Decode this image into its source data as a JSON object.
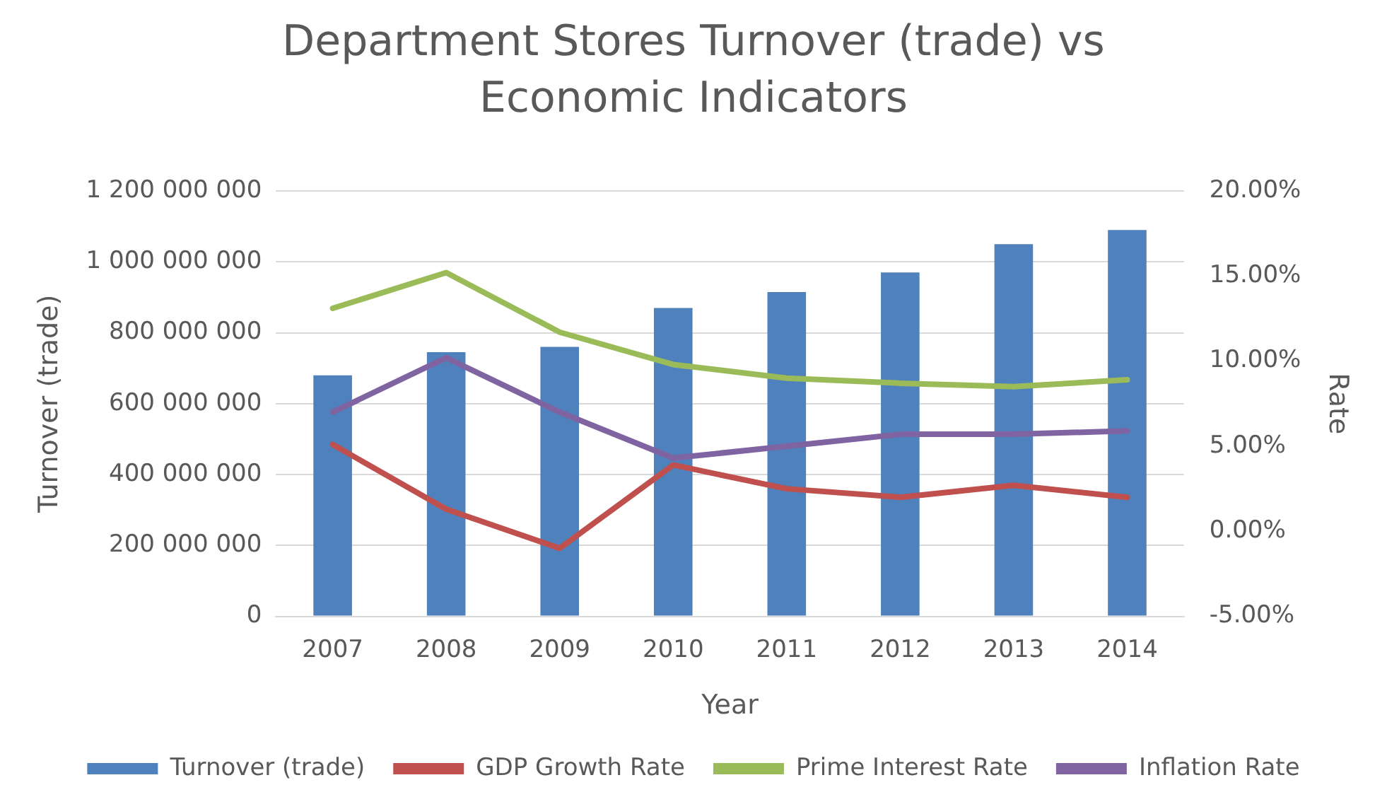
{
  "chart_data": {
    "type": "bar",
    "title": "Department Stores Turnover (trade) vs Economic Indicators",
    "xlabel": "Year",
    "ylabel": "Turnover (trade)",
    "y2label": "Rate",
    "categories": [
      "2007",
      "2008",
      "2009",
      "2010",
      "2011",
      "2012",
      "2013",
      "2014"
    ],
    "series": [
      {
        "name": "Turnover (trade)",
        "color": "#4f81bd",
        "values": [
          680000000,
          745000000,
          760000000,
          870000000,
          915000000,
          970000000,
          1050000000,
          1090000000
        ]
      },
      {
        "name": "GDP Growth Rate",
        "type": "line",
        "axis": "y2",
        "color": "#c0504d",
        "values": [
          5.1,
          1.3,
          -1.0,
          3.9,
          2.5,
          2.0,
          2.7,
          2.0
        ]
      },
      {
        "name": "Prime Interest Rate",
        "type": "line",
        "axis": "y2",
        "color": "#9bbb59",
        "values": [
          13.1,
          15.2,
          11.7,
          9.8,
          9.0,
          8.7,
          8.5,
          8.9
        ]
      },
      {
        "name": "Inflation Rate",
        "type": "line",
        "axis": "y2",
        "color": "#8064a2",
        "values": [
          7.0,
          10.2,
          7.0,
          4.3,
          5.0,
          5.7,
          5.7,
          5.9
        ]
      }
    ],
    "ylim": [
      0,
      1200000000
    ],
    "yticks": [
      {
        "value": 0,
        "label": "0"
      },
      {
        "value": 200000000,
        "label": "200 000 000"
      },
      {
        "value": 400000000,
        "label": "400 000 000"
      },
      {
        "value": 600000000,
        "label": "600 000 000"
      },
      {
        "value": 800000000,
        "label": "800 000 000"
      },
      {
        "value": 1000000000,
        "label": "1 000 000 000"
      },
      {
        "value": 1200000000,
        "label": "1 200 000 000"
      }
    ],
    "y2lim": [
      -5,
      20
    ],
    "y2ticks": [
      {
        "value": -5,
        "label": "-5.00%"
      },
      {
        "value": 0,
        "label": "0.00%"
      },
      {
        "value": 5,
        "label": "5.00%"
      },
      {
        "value": 10,
        "label": "10.00%"
      },
      {
        "value": 15,
        "label": "15.00%"
      },
      {
        "value": 20,
        "label": "20.00%"
      }
    ],
    "grid": "y",
    "legend": "bottom",
    "marker": "none",
    "line_style": "solid"
  }
}
